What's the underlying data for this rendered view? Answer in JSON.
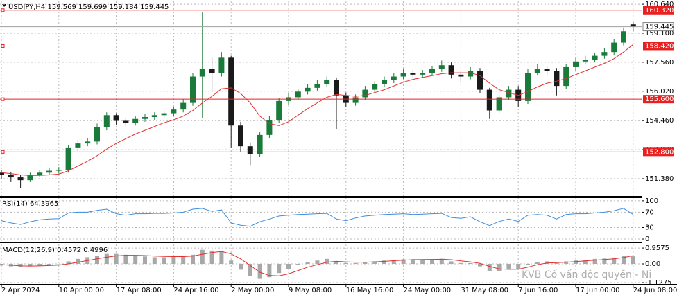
{
  "chart_data": [
    {
      "type": "candlestick",
      "title": "USDJPY,H4  159.569 159.699 159.184 159.445",
      "categories": [
        "2 Apr 2024",
        null,
        null,
        null,
        null,
        null,
        "10 Apr 00:00",
        null,
        null,
        null,
        null,
        null,
        "17 Apr 08:00",
        null,
        null,
        null,
        null,
        null,
        "24 Apr 16:00",
        null,
        null,
        null,
        null,
        null,
        "2 May 00:00",
        null,
        null,
        null,
        null,
        null,
        "9 May 08:00",
        null,
        null,
        null,
        null,
        null,
        "16 May 16:00",
        null,
        null,
        null,
        null,
        null,
        "24 May 00:00",
        null,
        null,
        null,
        null,
        null,
        "31 May 08:00",
        null,
        null,
        null,
        null,
        null,
        "7 Jun 16:00",
        null,
        null,
        null,
        null,
        null,
        "17 Jun 00:00",
        null,
        null,
        null,
        null,
        null,
        "24 Jun 08:00"
      ],
      "open": [
        151.7,
        151.6,
        151.45,
        151.3,
        151.55,
        151.7,
        151.8,
        151.85,
        153.0,
        153.25,
        153.35,
        154.1,
        154.75,
        154.45,
        154.35,
        154.55,
        154.65,
        154.75,
        154.85,
        155.05,
        155.4,
        156.8,
        157.2,
        157.0,
        157.8,
        154.2,
        153.1,
        152.7,
        153.7,
        154.5,
        155.5,
        155.7,
        156.0,
        156.2,
        156.4,
        156.6,
        155.8,
        155.4,
        155.7,
        156.1,
        156.4,
        156.6,
        156.8,
        157.0,
        156.9,
        157.0,
        157.2,
        157.4,
        156.9,
        156.8,
        157.1,
        156.1,
        155.0,
        155.7,
        156.1,
        155.5,
        157.0,
        157.2,
        157.1,
        156.3,
        157.3,
        157.6,
        157.7,
        157.9,
        158.1,
        158.6,
        159.569
      ],
      "high": [
        151.85,
        151.75,
        151.6,
        151.7,
        151.85,
        151.95,
        152.0,
        153.15,
        153.45,
        153.55,
        154.3,
        154.9,
        154.85,
        154.6,
        154.7,
        154.8,
        154.9,
        155.0,
        155.2,
        155.6,
        157.0,
        160.2,
        157.8,
        158.1,
        157.9,
        154.4,
        153.3,
        153.85,
        154.7,
        155.65,
        155.9,
        156.15,
        156.4,
        156.6,
        156.8,
        156.75,
        155.95,
        155.85,
        156.3,
        156.55,
        156.8,
        157.0,
        157.2,
        157.15,
        157.15,
        157.35,
        157.65,
        157.55,
        157.1,
        157.3,
        157.25,
        156.2,
        155.85,
        156.3,
        156.3,
        157.2,
        157.45,
        157.35,
        157.25,
        157.45,
        157.8,
        157.9,
        158.05,
        158.3,
        158.8,
        159.4,
        159.699
      ],
      "low": [
        151.35,
        151.2,
        150.9,
        151.2,
        151.45,
        151.6,
        151.65,
        151.7,
        152.85,
        153.1,
        153.2,
        153.95,
        154.25,
        154.15,
        154.2,
        154.4,
        154.5,
        154.6,
        154.7,
        154.9,
        155.25,
        154.6,
        156.0,
        156.8,
        153.0,
        152.8,
        152.1,
        152.55,
        153.55,
        154.35,
        155.3,
        155.55,
        155.85,
        156.05,
        156.25,
        154.0,
        155.2,
        155.25,
        155.55,
        155.95,
        156.25,
        156.45,
        156.65,
        156.75,
        156.75,
        156.85,
        157.05,
        156.7,
        156.5,
        156.65,
        155.9,
        154.55,
        154.85,
        155.55,
        155.2,
        155.35,
        156.85,
        156.9,
        155.8,
        156.15,
        157.1,
        157.45,
        157.55,
        157.75,
        157.95,
        158.45,
        159.184
      ],
      "close": [
        151.6,
        151.45,
        151.3,
        151.55,
        151.7,
        151.8,
        151.85,
        153.0,
        153.25,
        153.35,
        154.1,
        154.75,
        154.45,
        154.35,
        154.55,
        154.65,
        154.75,
        154.85,
        155.05,
        155.4,
        156.8,
        157.2,
        157.0,
        157.8,
        154.2,
        153.1,
        152.7,
        153.7,
        154.5,
        155.5,
        155.7,
        156.0,
        156.2,
        156.4,
        156.6,
        155.8,
        155.4,
        155.7,
        156.1,
        156.4,
        156.6,
        156.8,
        157.0,
        156.9,
        157.0,
        157.2,
        157.4,
        156.9,
        156.8,
        157.1,
        156.1,
        155.0,
        155.7,
        156.1,
        155.5,
        157.0,
        157.2,
        157.1,
        156.3,
        157.3,
        157.6,
        157.7,
        157.9,
        158.1,
        158.6,
        159.2,
        159.445
      ],
      "up_color": "#1a7a3a",
      "down_color": "#1a1a1a",
      "ma": {
        "color": "#e03030",
        "values": [
          151.7,
          151.65,
          151.58,
          151.55,
          151.55,
          151.58,
          151.62,
          151.8,
          152.05,
          152.3,
          152.6,
          152.95,
          153.25,
          153.5,
          153.75,
          153.95,
          154.15,
          154.35,
          154.5,
          154.7,
          155.0,
          155.4,
          155.75,
          156.15,
          156.2,
          155.9,
          155.4,
          154.7,
          154.3,
          154.2,
          154.4,
          154.75,
          155.1,
          155.4,
          155.7,
          155.85,
          155.8,
          155.75,
          155.8,
          155.95,
          156.1,
          156.3,
          156.5,
          156.65,
          156.75,
          156.85,
          156.95,
          157.0,
          157.0,
          157.0,
          156.85,
          156.45,
          156.1,
          155.95,
          155.8,
          156.0,
          156.25,
          156.45,
          156.55,
          156.7,
          156.9,
          157.1,
          157.3,
          157.5,
          157.75,
          158.1,
          158.5
        ]
      },
      "ylim": [
        150.46,
        160.79
      ],
      "yticks": [
        {
          "value": 160.64,
          "label": "160.640"
        },
        {
          "value": 159.1,
          "label": "159.100"
        },
        {
          "value": 157.56,
          "label": "157.560"
        },
        {
          "value": 156.02,
          "label": "156.020"
        },
        {
          "value": 154.46,
          "label": "154.460"
        },
        {
          "value": 152.92,
          "label": "152.920"
        },
        {
          "value": 151.38,
          "label": "151.380"
        }
      ],
      "grid": true,
      "levels": [
        {
          "value": 160.32,
          "label": "160.320"
        },
        {
          "value": 158.42,
          "label": "158.420"
        },
        {
          "value": 155.6,
          "label": "155.600"
        },
        {
          "value": 152.8,
          "label": "152.800"
        }
      ],
      "level_color": "#e82020",
      "current_price": {
        "value": 159.445,
        "label": "159.445"
      },
      "watermark": "KVB Cố vấn độc quyền - Ni"
    },
    {
      "type": "line",
      "title": "RSI(14) 64.3965",
      "color": "#3c8ce0",
      "values": [
        48,
        42,
        38,
        45,
        50,
        52,
        53,
        68,
        70,
        70,
        75,
        78,
        66,
        62,
        66,
        66,
        67,
        67,
        68,
        70,
        78,
        80,
        72,
        76,
        42,
        36,
        33,
        45,
        52,
        60,
        62,
        64,
        65,
        66,
        67,
        52,
        48,
        55,
        60,
        62,
        64,
        65,
        66,
        64,
        65,
        66,
        67,
        56,
        54,
        58,
        45,
        35,
        46,
        52,
        46,
        62,
        64,
        62,
        52,
        64,
        66,
        66,
        68,
        70,
        74,
        80,
        64
      ],
      "ylim": [
        -9,
        107
      ],
      "yticks": [
        100,
        70,
        30,
        0
      ]
    },
    {
      "type": "bar",
      "title": "MACD(12,26,9) 0.4572 0.4996",
      "color": "#a8a8a8",
      "values": [
        -0.1,
        -0.15,
        -0.2,
        -0.15,
        -0.1,
        -0.05,
        0,
        0.15,
        0.3,
        0.4,
        0.5,
        0.6,
        0.6,
        0.55,
        0.5,
        0.45,
        0.4,
        0.4,
        0.42,
        0.45,
        0.55,
        0.85,
        0.8,
        0.75,
        0.2,
        -0.35,
        -0.75,
        -0.9,
        -0.8,
        -0.55,
        -0.3,
        -0.05,
        0.1,
        0.2,
        0.3,
        0.15,
        0.05,
        0.05,
        0.1,
        0.15,
        0.2,
        0.25,
        0.28,
        0.28,
        0.27,
        0.28,
        0.3,
        0.15,
        0.05,
        0.05,
        -0.15,
        -0.45,
        -0.45,
        -0.3,
        -0.3,
        -0.05,
        0.1,
        0.15,
        0.05,
        0.15,
        0.2,
        0.25,
        0.3,
        0.32,
        0.38,
        0.48,
        0.4572
      ],
      "signal": {
        "color": "#e03030",
        "values": [
          -0.05,
          -0.08,
          -0.12,
          -0.13,
          -0.12,
          -0.1,
          -0.07,
          0,
          0.1,
          0.2,
          0.3,
          0.4,
          0.48,
          0.52,
          0.52,
          0.5,
          0.47,
          0.45,
          0.44,
          0.44,
          0.47,
          0.58,
          0.68,
          0.75,
          0.6,
          0.3,
          -0.1,
          -0.5,
          -0.7,
          -0.72,
          -0.6,
          -0.4,
          -0.2,
          -0.05,
          0.1,
          0.15,
          0.12,
          0.1,
          0.1,
          0.12,
          0.15,
          0.19,
          0.22,
          0.25,
          0.26,
          0.27,
          0.28,
          0.25,
          0.18,
          0.12,
          0.03,
          -0.15,
          -0.3,
          -0.33,
          -0.32,
          -0.2,
          -0.05,
          0.05,
          0.07,
          0.1,
          0.14,
          0.18,
          0.22,
          0.26,
          0.3,
          0.38,
          0.4996
        ]
      },
      "ylim": [
        -1.21,
        1.17
      ],
      "yticks": [
        0.9575,
        {
          "value": 0,
          "label": "0.00"
        },
        -1.1275
      ]
    }
  ]
}
